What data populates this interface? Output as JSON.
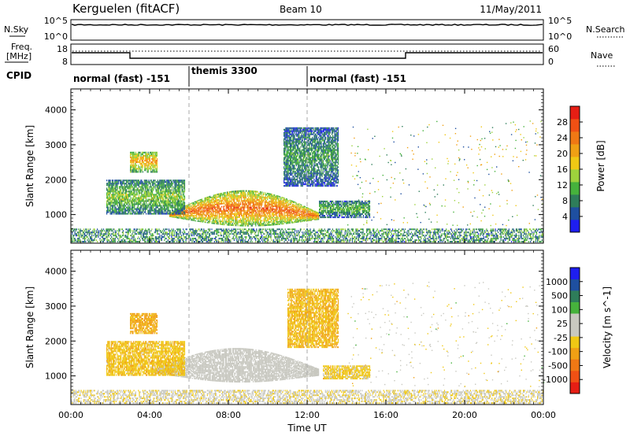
{
  "header": {
    "station": "Kerguelen (fitACF)",
    "beam": "Beam 10",
    "date": "11/May/2011"
  },
  "noise_panel": {
    "left_label": "N.Sky",
    "right_label": "N.Search",
    "left_ticks": [
      "10^5",
      "10^0"
    ],
    "right_ticks": [
      "10^5",
      "10^0"
    ]
  },
  "freq_panel": {
    "left_label_1": "Freq.",
    "left_label_2": "[MHz]",
    "right_label": "Nave",
    "left_ticks": [
      "18",
      "8"
    ],
    "right_ticks": [
      "60",
      "0"
    ]
  },
  "cpid": {
    "label": "CPID",
    "segments": [
      {
        "name": "normal (fast) -151",
        "start_hour": 0,
        "end_hour": 6
      },
      {
        "name": "themis 3300",
        "start_hour": 6,
        "end_hour": 12
      },
      {
        "name": "normal (fast) -151",
        "start_hour": 12,
        "end_hour": 24
      }
    ]
  },
  "chart_data": [
    {
      "type": "heatmap",
      "ylabel": "Slant Range [km]",
      "xlim": [
        0,
        24
      ],
      "ylim": [
        180,
        4600
      ],
      "yticks": [
        "1000",
        "2000",
        "3000",
        "4000"
      ],
      "colorbar": {
        "label": "Power [dB]",
        "ticks": [
          "4",
          "8",
          "12",
          "16",
          "20",
          "24",
          "28"
        ],
        "range": [
          0,
          32
        ],
        "colors": [
          "#1e1ef0",
          "#1e4fa0",
          "#2e7d5a",
          "#46b23c",
          "#9ed23c",
          "#f0c814",
          "#f0a014",
          "#f07814",
          "#f05014",
          "#e61e14"
        ]
      },
      "regions": [
        {
          "name": "main-echo",
          "start_hour": 5.0,
          "end_hour": 12.6,
          "range_low": 700,
          "range_high": 1700,
          "value_db": 26
        },
        {
          "name": "morning-band",
          "start_hour": 1.8,
          "end_hour": 5.8,
          "range_low": 1000,
          "range_high": 2000,
          "value_db": 14
        },
        {
          "name": "morning-high",
          "start_hour": 3.0,
          "end_hour": 4.4,
          "range_low": 2200,
          "range_high": 2800,
          "value_db": 22
        },
        {
          "name": "upper-patch",
          "start_hour": 10.8,
          "end_hour": 13.6,
          "range_low": 1800,
          "range_high": 3500,
          "value_db": 10
        },
        {
          "name": "afternoon-tail",
          "start_hour": 12.6,
          "end_hour": 15.2,
          "range_low": 900,
          "range_high": 1400,
          "value_db": 12
        },
        {
          "name": "near-range",
          "start_hour": 0.0,
          "end_hour": 24.0,
          "range_low": 200,
          "range_high": 600,
          "value_db": 8
        }
      ]
    },
    {
      "type": "heatmap",
      "ylabel": "Slant Range [km]",
      "xlabel": "Time UT",
      "xlim": [
        0,
        24
      ],
      "ylim": [
        180,
        4600
      ],
      "xticks": [
        "00:00",
        "04:00",
        "08:00",
        "12:00",
        "16:00",
        "20:00",
        "00:00"
      ],
      "yticks": [
        "1000",
        "2000",
        "3000",
        "4000"
      ],
      "colorbar": {
        "label": "Velocity [m s^-1]",
        "ticks": [
          "1000",
          "500",
          "100",
          "25",
          "-25",
          "-100",
          "-500",
          "-1000"
        ],
        "range": [
          -1200,
          1200
        ],
        "colors": [
          "#e61e14",
          "#f05014",
          "#f07814",
          "#f0a014",
          "#f0c814",
          "#c8c8c0",
          "#c8c8c0",
          "#46b23c",
          "#2e7d5a",
          "#1e4fa0",
          "#1e1ef0"
        ]
      },
      "regions": [
        {
          "name": "ground-scatter",
          "start_hour": 4.2,
          "end_hour": 12.6,
          "range_low": 850,
          "range_high": 1800,
          "value_ms": 0
        },
        {
          "name": "morning-band",
          "start_hour": 1.8,
          "end_hour": 5.8,
          "range_low": 1000,
          "range_high": 2000,
          "value_ms": -250
        },
        {
          "name": "morning-high",
          "start_hour": 3.0,
          "end_hour": 4.4,
          "range_low": 2200,
          "range_high": 2800,
          "value_ms": -400
        },
        {
          "name": "upper-patch",
          "start_hour": 11.0,
          "end_hour": 13.6,
          "range_low": 1800,
          "range_high": 3500,
          "value_ms": -300
        },
        {
          "name": "afternoon-tail",
          "start_hour": 12.8,
          "end_hour": 15.2,
          "range_low": 900,
          "range_high": 1300,
          "value_ms": -200
        },
        {
          "name": "near-range",
          "start_hour": 0.0,
          "end_hour": 24.0,
          "range_low": 200,
          "range_high": 600,
          "value_ms": -60
        }
      ]
    }
  ]
}
